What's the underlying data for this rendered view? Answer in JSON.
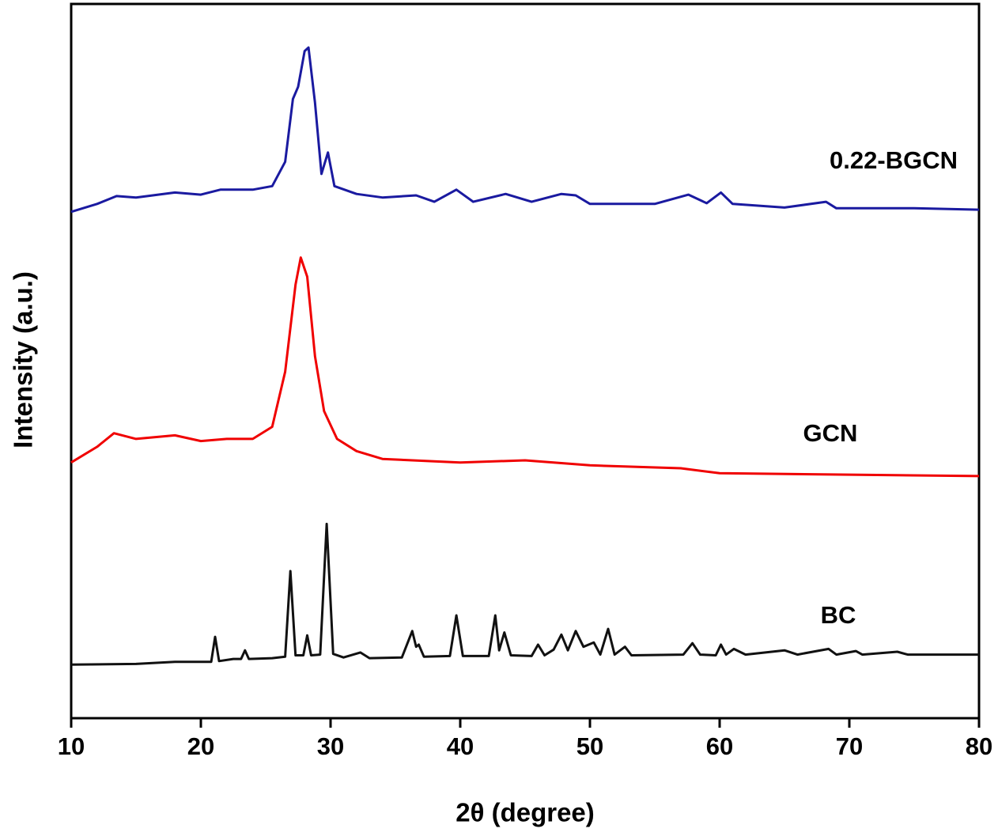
{
  "chart_data": {
    "type": "line",
    "x_label": "2θ (degree)",
    "y_label": "Intensity (a.u.)",
    "xlim": [
      10,
      80
    ],
    "xticks": [
      10,
      20,
      30,
      40,
      50,
      60,
      70,
      80
    ],
    "ylim": [
      0,
      100
    ],
    "series": [
      {
        "name": "BC",
        "color": "#111111",
        "x": [
          10,
          15,
          18,
          20,
          20.8,
          21.1,
          21.4,
          22.5,
          23.1,
          23.4,
          23.7,
          25.5,
          26.5,
          26.9,
          27.3,
          27.9,
          28.2,
          28.5,
          29.2,
          29.7,
          30.2,
          31,
          32.3,
          33,
          35.5,
          36.3,
          36.6,
          36.8,
          37.2,
          39.2,
          39.7,
          40.2,
          42.2,
          42.7,
          43.0,
          43.4,
          43.9,
          45.5,
          46.0,
          46.5,
          47.2,
          47.8,
          48.3,
          48.9,
          49.5,
          50.3,
          50.8,
          51.4,
          51.9,
          52.7,
          53.2,
          57.2,
          57.9,
          58.5,
          59.7,
          60.1,
          60.5,
          61.1,
          62,
          65.0,
          66,
          68.4,
          69,
          70.5,
          71,
          73.7,
          74.5,
          80
        ],
        "values": [
          7.5,
          7.6,
          7.9,
          7.9,
          7.9,
          11.4,
          8.0,
          8.3,
          8.3,
          9.5,
          8.3,
          8.4,
          8.6,
          20.6,
          8.8,
          8.8,
          11.6,
          8.8,
          8.9,
          27.2,
          9.0,
          8.5,
          9.2,
          8.4,
          8.5,
          12.2,
          10.0,
          10.3,
          8.6,
          8.7,
          14.4,
          8.7,
          8.7,
          14.4,
          9.5,
          12.0,
          8.8,
          8.7,
          10.3,
          8.8,
          9.6,
          11.7,
          9.5,
          12.2,
          10.0,
          10.6,
          8.9,
          12.5,
          8.9,
          10.0,
          8.8,
          8.9,
          10.5,
          8.9,
          8.8,
          10.3,
          8.9,
          9.7,
          8.9,
          9.5,
          8.9,
          9.7,
          8.9,
          9.4,
          8.9,
          9.3,
          8.9,
          8.9
        ]
      },
      {
        "name": "GCN",
        "color": "#f00000",
        "x": [
          10,
          12,
          13.3,
          15,
          18,
          20,
          22,
          24,
          25.5,
          26.5,
          27.3,
          27.7,
          28.2,
          28.8,
          29.5,
          30.5,
          32,
          34,
          40,
          45,
          50,
          57,
          60,
          70,
          80
        ],
        "values": [
          35.8,
          38.0,
          39.9,
          39.1,
          39.6,
          38.8,
          39.1,
          39.1,
          40.8,
          48.5,
          60.7,
          64.5,
          61.8,
          50.7,
          43.0,
          39.1,
          37.4,
          36.3,
          35.8,
          36.1,
          35.4,
          35.0,
          34.3,
          34.1,
          33.9
        ]
      },
      {
        "name": "0.22-BGCN",
        "color": "#1a1aa0",
        "x": [
          10,
          12,
          13.5,
          15,
          18,
          20,
          21.5,
          24,
          25.5,
          26.5,
          27.1,
          27.5,
          28.0,
          28.3,
          28.8,
          29.3,
          29.8,
          30.3,
          32,
          34,
          36.6,
          38,
          39.7,
          41,
          43.5,
          45.5,
          47.8,
          48.9,
          50,
          55,
          57.6,
          59,
          60.1,
          61,
          65,
          68.2,
          69,
          75,
          80
        ],
        "values": [
          70.9,
          72.0,
          73.1,
          72.9,
          73.6,
          73.3,
          74.0,
          74.0,
          74.5,
          77.9,
          86.7,
          88.4,
          93.4,
          93.9,
          86.2,
          76.2,
          79.2,
          74.5,
          73.4,
          72.9,
          73.2,
          72.3,
          74.0,
          72.3,
          73.4,
          72.3,
          73.4,
          73.2,
          72.0,
          72.0,
          73.3,
          72.1,
          73.6,
          72.0,
          71.5,
          72.3,
          71.4,
          71.4,
          71.2
        ]
      }
    ]
  }
}
